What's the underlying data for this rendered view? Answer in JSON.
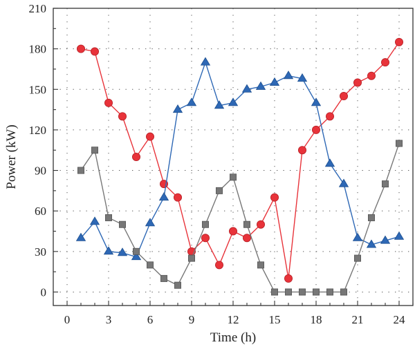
{
  "chart_data": {
    "type": "line",
    "xlabel": "Time (h)",
    "ylabel": "Power (kW)",
    "xlim": [
      -1,
      25
    ],
    "ylim": [
      -10,
      210
    ],
    "x_ticks": [
      0,
      3,
      6,
      9,
      12,
      15,
      18,
      21,
      24
    ],
    "x_tick_labels": [
      "0",
      "3",
      "6",
      "9",
      "12",
      "15",
      "18",
      "21",
      "24"
    ],
    "y_ticks": [
      0,
      30,
      60,
      90,
      120,
      150,
      180,
      210
    ],
    "y_tick_labels": [
      "0",
      "30",
      "60",
      "90",
      "120",
      "150",
      "180",
      "210"
    ],
    "grid": true,
    "x": [
      1,
      2,
      3,
      4,
      5,
      6,
      7,
      8,
      9,
      10,
      11,
      12,
      13,
      14,
      15,
      16,
      17,
      18,
      19,
      20,
      21,
      22,
      23,
      24
    ],
    "series": [
      {
        "marker": "circle",
        "color": "#e8333a",
        "values": [
          180,
          178,
          140,
          130,
          100,
          115,
          80,
          70,
          30,
          40,
          20,
          45,
          40,
          50,
          70,
          10,
          105,
          120,
          130,
          145,
          155,
          160,
          170,
          185
        ]
      },
      {
        "marker": "triangle",
        "color": "#2e68b5",
        "values": [
          40,
          52,
          30,
          29,
          26,
          51,
          70,
          135,
          140,
          170,
          138,
          140,
          150,
          152,
          155,
          160,
          158,
          140,
          95,
          80,
          40,
          35,
          38,
          41
        ]
      },
      {
        "marker": "square",
        "color": "#777777",
        "values": [
          90,
          105,
          55,
          50,
          30,
          20,
          10,
          5,
          25,
          50,
          75,
          85,
          50,
          20,
          0,
          0,
          0,
          0,
          0,
          0,
          25,
          55,
          80,
          110
        ]
      }
    ]
  }
}
